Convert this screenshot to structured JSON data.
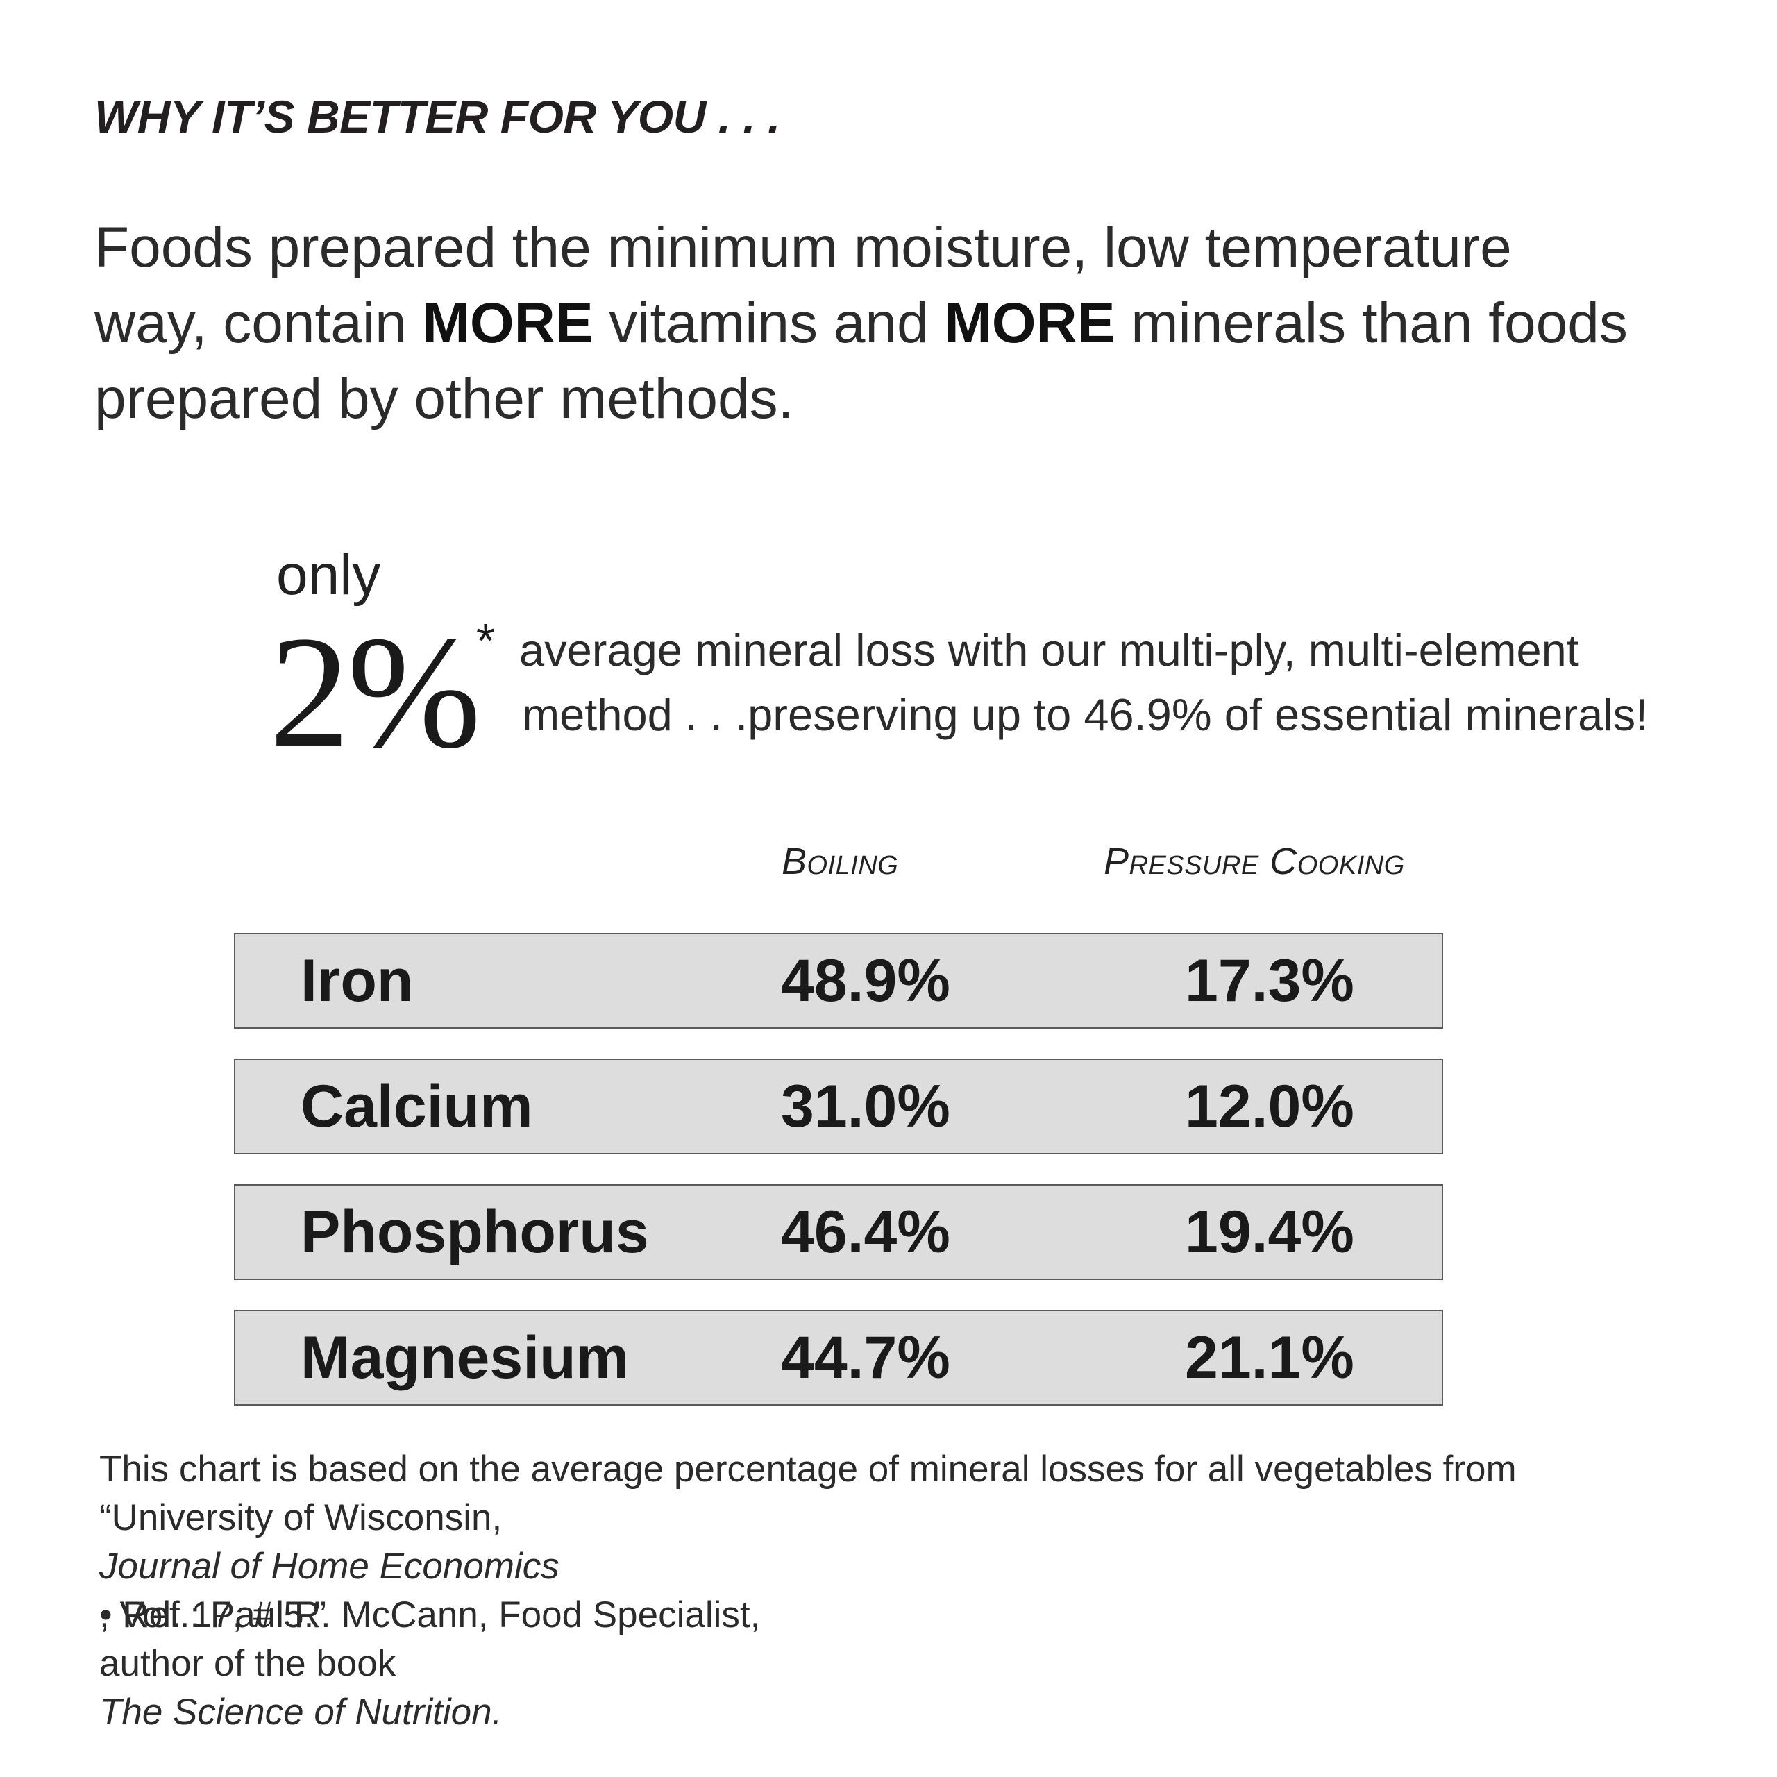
{
  "heading": "WHY IT’S BETTER FOR YOU . . .",
  "intro": {
    "line1": "Foods prepared the minimum moisture, low temperature",
    "line2_a": "way, contain ",
    "line2_b": "MORE",
    "line2_c": " vitamins and ",
    "line2_d": "MORE",
    "line2_e": " minerals than foods",
    "line3": "prepared by other methods."
  },
  "callout": {
    "only": "only",
    "percent": "2%",
    "asterisk": "*",
    "line1": "average mineral loss with our multi-ply, multi-element",
    "line2": "method . . .preserving up to 46.9% of essential minerals!"
  },
  "table": {
    "headers": {
      "boiling": "Boiling",
      "pressure": "Pressure Cooking"
    },
    "rows": [
      {
        "mineral": "Iron",
        "boiling": "48.9%",
        "pressure": "17.3%"
      },
      {
        "mineral": "Calcium",
        "boiling": "31.0%",
        "pressure": "12.0%"
      },
      {
        "mineral": "Phosphorus",
        "boiling": "46.4%",
        "pressure": "19.4%"
      },
      {
        "mineral": "Magnesium",
        "boiling": "44.7%",
        "pressure": "21.1%"
      }
    ]
  },
  "note": {
    "line1": "This chart is based on the average percentage of mineral losses for all vegetables from",
    "line2_a": "“University of Wisconsin, ",
    "line2_b": "Journal of Home Economics",
    "line2_c": ", Vol. 17, # 5.”"
  },
  "ref": {
    "line1": "• Ref.: Paul R. McCann, Food Specialist,",
    "line2_a": "author of the book ",
    "line2_b": "The Science of Nutrition."
  }
}
